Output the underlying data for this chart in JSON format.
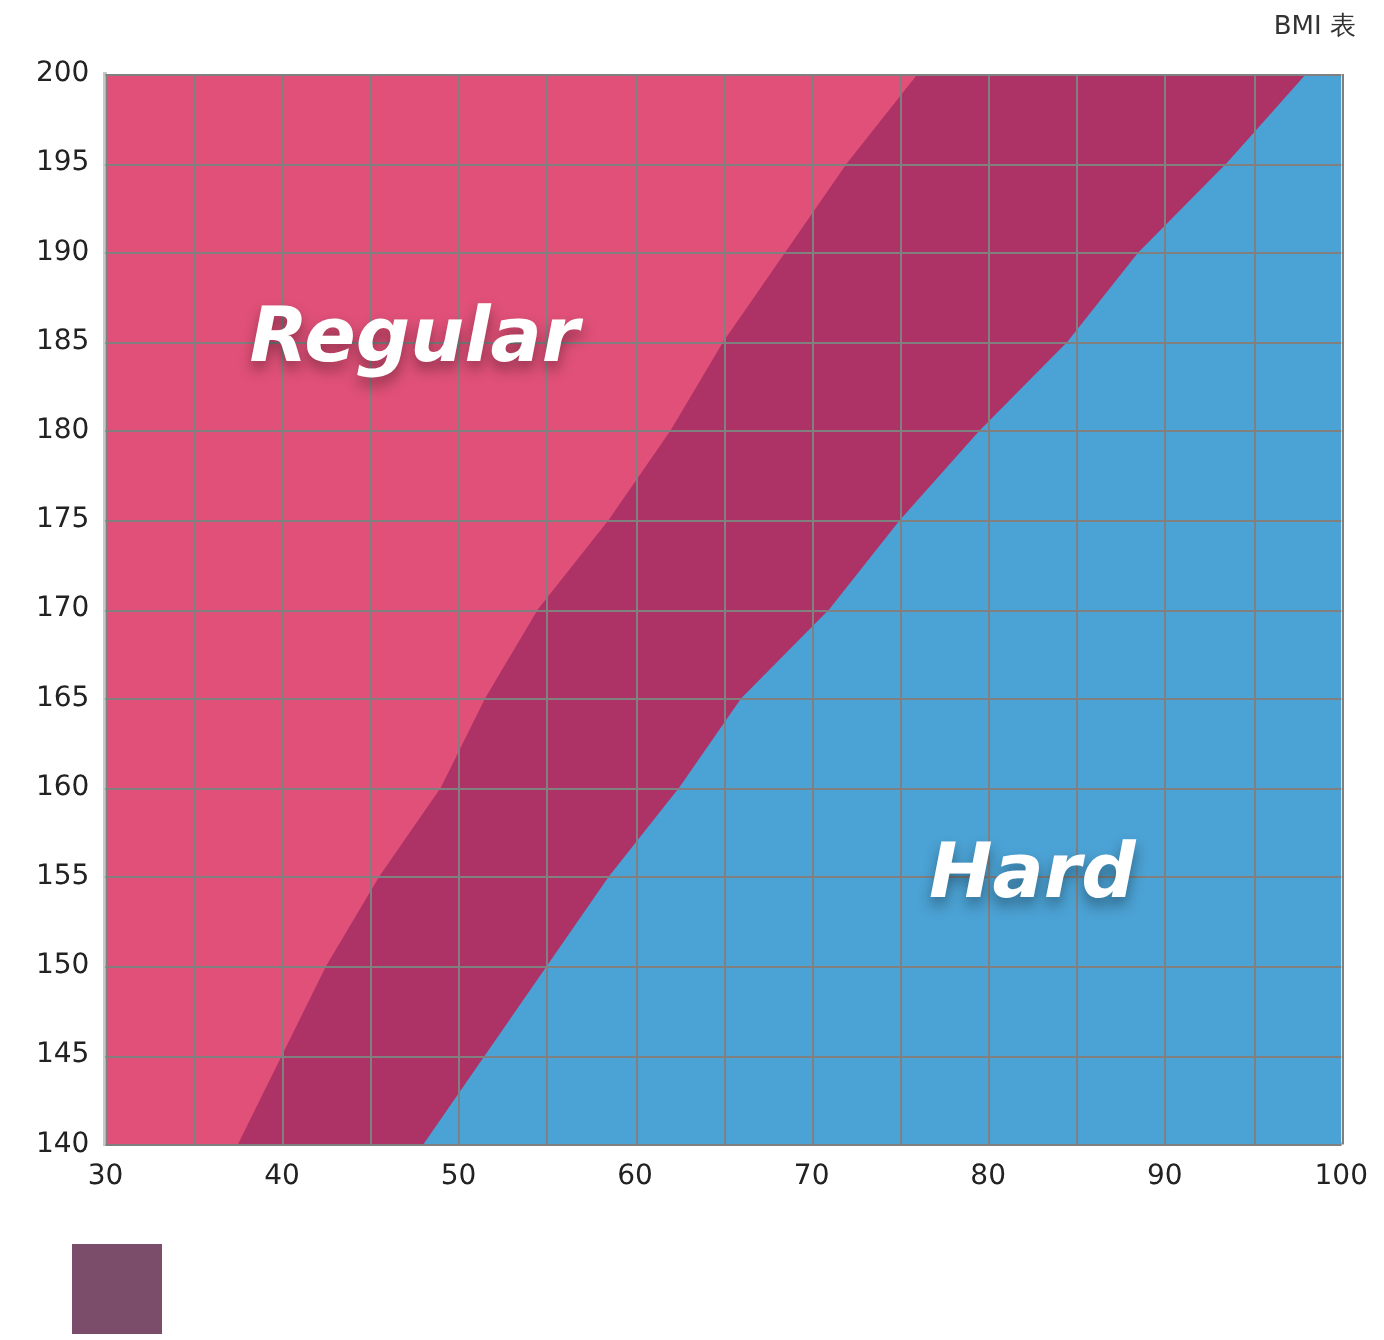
{
  "chart_data": {
    "type": "area",
    "title": "BMI 表",
    "xlim": [
      30,
      100
    ],
    "xticks": [
      30,
      {
        "value": 35,
        "label": null
      },
      40,
      {
        "value": 45,
        "label": null
      },
      50,
      {
        "value": 55,
        "label": null
      },
      60,
      {
        "value": 65,
        "label": null
      },
      70,
      {
        "value": 75,
        "label": null
      },
      80,
      {
        "value": 85,
        "label": null
      },
      90,
      {
        "value": 95,
        "label": null
      },
      100
    ],
    "ylim": [
      140,
      200
    ],
    "yticks": [
      140,
      145,
      150,
      155,
      160,
      165,
      170,
      175,
      180,
      185,
      190,
      195,
      200
    ],
    "grid": true,
    "legend": false,
    "series": [
      {
        "color": "#e05078",
        "x": [
          30,
          100
        ],
        "values": [
          200,
          200
        ]
      },
      {
        "color": "#ad3366",
        "x": [
          37.5,
          40,
          42.5,
          45.5,
          49,
          51.5,
          54.5,
          58.5,
          62,
          65,
          68.5,
          72,
          76,
          100
        ],
        "values": [
          140,
          145,
          150,
          155,
          160,
          165,
          170,
          175,
          180,
          185,
          190,
          195,
          200,
          200
        ]
      },
      {
        "color": "#4ba2d4",
        "x": [
          48,
          51.5,
          55,
          58.5,
          62.5,
          66,
          71,
          75,
          79.5,
          84.5,
          88.5,
          93.5,
          98,
          100
        ],
        "values": [
          140,
          145,
          150,
          155,
          160,
          165,
          170,
          175,
          180,
          185,
          190,
          195,
          200,
          200
        ]
      }
    ],
    "annotations": [
      "Regular",
      "Hard"
    ]
  }
}
